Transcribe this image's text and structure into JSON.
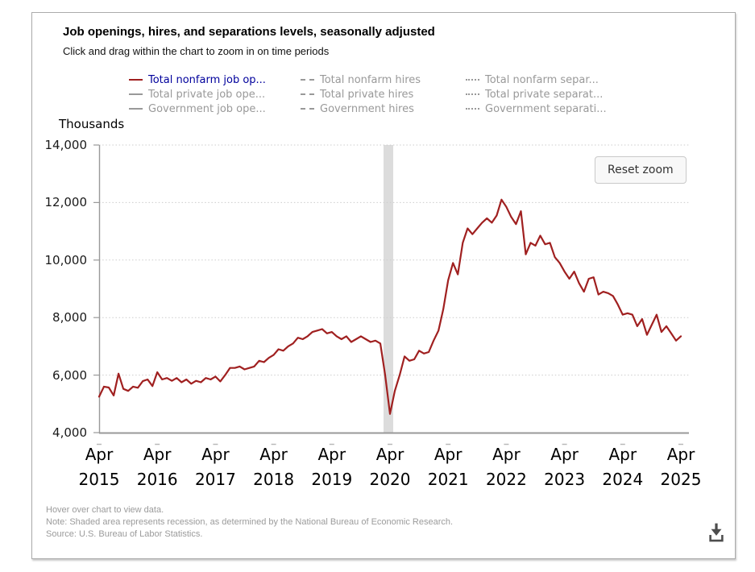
{
  "header": {
    "title": "Job openings, hires, and separations levels, seasonally adjusted",
    "subtitle": "Click and drag within the chart to zoom in on time periods"
  },
  "legend": {
    "position": "top",
    "columns": [
      {
        "items": [
          {
            "label": "Total nonfarm job op...",
            "style": "solid",
            "active": true
          },
          {
            "label": "Total private job ope...",
            "style": "solid",
            "active": false
          },
          {
            "label": "Government job ope...",
            "style": "solid",
            "active": false
          }
        ]
      },
      {
        "items": [
          {
            "label": "Total nonfarm hires",
            "style": "dashed",
            "active": false
          },
          {
            "label": "Total private hires",
            "style": "dashed",
            "active": false
          },
          {
            "label": "Government hires",
            "style": "dashed",
            "active": false
          }
        ]
      },
      {
        "items": [
          {
            "label": "Total nonfarm separ...",
            "style": "dotted",
            "active": false
          },
          {
            "label": "Total private separat...",
            "style": "dotted",
            "active": false
          },
          {
            "label": "Government separati...",
            "style": "dotted",
            "active": false
          }
        ]
      }
    ]
  },
  "chart": {
    "reset_zoom_label": "Reset zoom"
  },
  "footer": {
    "line1": "Hover over chart to view data.",
    "line2": "Note: Shaded area represents recession, as determined by the National Bureau of Economic Research.",
    "line3": "Source: U.S. Bureau of Labor Statistics."
  },
  "icons": {
    "download": "download-icon"
  },
  "colors": {
    "series_red": "#A02020",
    "active_legend_text": "#00009C",
    "inactive_gray": "#999999",
    "axis_gray": "#999999",
    "gridline_gray": "#cccccc",
    "recession_band": "#dcdcdc"
  },
  "chart_data": {
    "type": "line",
    "title": "Job openings, hires, and separations levels, seasonally adjusted",
    "y_axis_title": "Thousands",
    "unit": "thousands",
    "ylim": [
      4000,
      14000
    ],
    "y_ticks": [
      14000,
      12000,
      10000,
      8000,
      6000,
      4000
    ],
    "y_tick_labels": [
      "14,000",
      "12,000",
      "10,000",
      "8,000",
      "6,000",
      "4,000"
    ],
    "x_ticks": [
      "Apr 2015",
      "Apr 2016",
      "Apr 2017",
      "Apr 2018",
      "Apr 2019",
      "Apr 2020",
      "Apr 2021",
      "Apr 2022",
      "Apr 2023",
      "Apr 2024",
      "Apr 2025"
    ],
    "grid": "horizontal-dotted",
    "legend_position": "top",
    "recession_shading": {
      "start": "2020-02",
      "end": "2020-04"
    },
    "series": [
      {
        "name": "Total nonfarm job openings",
        "color": "#A02020",
        "line_style": "solid",
        "frequency": "monthly",
        "start_month": "2015-04",
        "end_month": "2025-04",
        "values": [
          5250,
          5600,
          5570,
          5290,
          6050,
          5520,
          5450,
          5600,
          5560,
          5790,
          5850,
          5620,
          6100,
          5850,
          5900,
          5800,
          5900,
          5750,
          5850,
          5700,
          5800,
          5750,
          5900,
          5850,
          5950,
          5780,
          6000,
          6250,
          6250,
          6300,
          6200,
          6250,
          6300,
          6500,
          6450,
          6600,
          6700,
          6900,
          6850,
          7000,
          7100,
          7300,
          7250,
          7350,
          7500,
          7550,
          7600,
          7450,
          7500,
          7350,
          7250,
          7350,
          7150,
          7250,
          7350,
          7250,
          7150,
          7200,
          7100,
          6000,
          4650,
          5450,
          6000,
          6650,
          6500,
          6550,
          6850,
          6750,
          6800,
          7200,
          7550,
          8300,
          9300,
          9900,
          9500,
          10600,
          11100,
          10900,
          11100,
          11300,
          11450,
          11300,
          11550,
          12100,
          11850,
          11500,
          11250,
          11700,
          10200,
          10600,
          10500,
          10850,
          10550,
          10600,
          10100,
          9900,
          9600,
          9350,
          9600,
          9200,
          8900,
          9350,
          9400,
          8800,
          8900,
          8850,
          8750,
          8450,
          8100,
          8150,
          8100,
          7700,
          7950,
          7400,
          7750,
          8100,
          7500,
          7700,
          7450,
          7200,
          7350
        ]
      },
      {
        "name": "Total private job openings",
        "line_style": "solid",
        "visible": false
      },
      {
        "name": "Government job openings",
        "line_style": "solid",
        "visible": false
      },
      {
        "name": "Total nonfarm hires",
        "line_style": "dashed",
        "visible": false
      },
      {
        "name": "Total private hires",
        "line_style": "dashed",
        "visible": false
      },
      {
        "name": "Government hires",
        "line_style": "dashed",
        "visible": false
      },
      {
        "name": "Total nonfarm separations",
        "line_style": "dotted",
        "visible": false
      },
      {
        "name": "Total private separations",
        "line_style": "dotted",
        "visible": false
      },
      {
        "name": "Government separations",
        "line_style": "dotted",
        "visible": false
      }
    ]
  }
}
